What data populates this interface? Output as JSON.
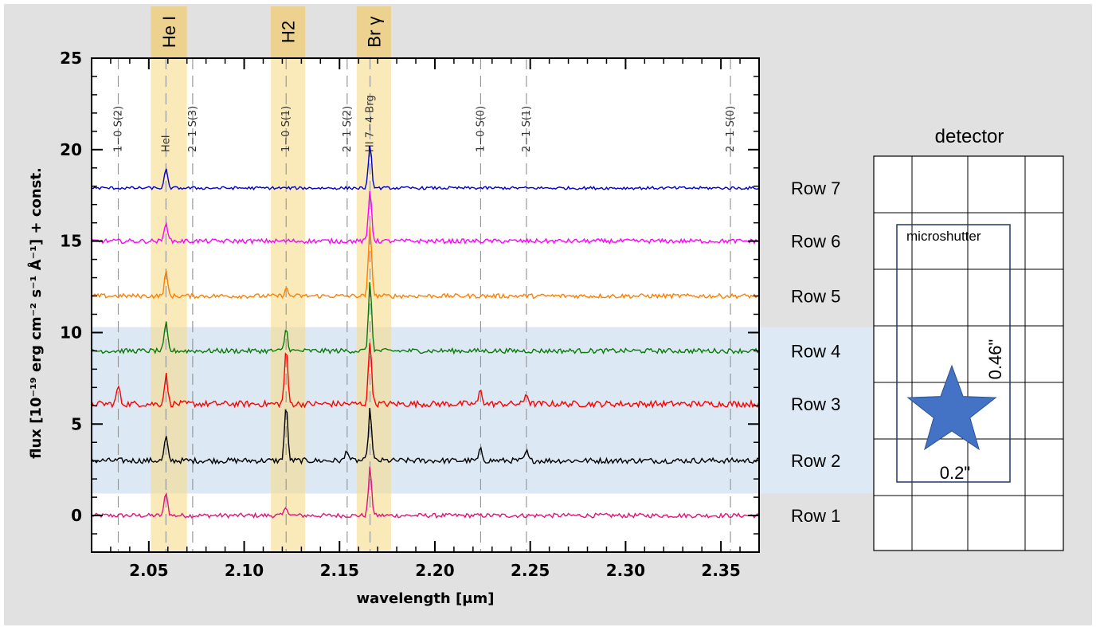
{
  "chart_data": {
    "type": "line",
    "xlabel": "wavelength [μm]",
    "ylabel": "flux [10⁻¹⁹ erg cm⁻² s⁻¹ Å⁻¹] + const.",
    "xlim": [
      2.02,
      2.37
    ],
    "ylim": [
      -2,
      25
    ],
    "x_ticks": [
      2.05,
      2.1,
      2.15,
      2.2,
      2.25,
      2.3,
      2.35
    ],
    "x_tick_labels": [
      "2.05",
      "2.10",
      "2.15",
      "2.20",
      "2.25",
      "2.30",
      "2.35"
    ],
    "y_ticks": [
      0,
      5,
      10,
      15,
      20,
      25
    ],
    "y_tick_labels": [
      "0",
      "5",
      "10",
      "15",
      "20",
      "25"
    ],
    "bands": [
      {
        "label": "He I",
        "x0": 2.051,
        "x1": 2.07
      },
      {
        "label": "H2",
        "x0": 2.114,
        "x1": 2.132
      },
      {
        "label": "Br γ",
        "x0": 2.159,
        "x1": 2.177
      }
    ],
    "lines": [
      {
        "label": "1−0 S(2)",
        "x": 2.034
      },
      {
        "label": "HeI",
        "x": 2.059
      },
      {
        "label": "2−1 S(3)",
        "x": 2.073
      },
      {
        "label": "1−0 S(1)",
        "x": 2.122
      },
      {
        "label": "2−1 S(2)",
        "x": 2.154
      },
      {
        "label": "HI 7−4 Brg",
        "x": 2.166
      },
      {
        "label": "1−0 S(0)",
        "x": 2.224
      },
      {
        "label": "2−1 S(1)",
        "x": 2.248
      },
      {
        "label": "2−1 S(0)",
        "x": 2.355
      }
    ],
    "highlight_region": {
      "y0": 1.2,
      "y1": 10.3
    },
    "series": [
      {
        "label": "Row 1",
        "color": "#e0147a",
        "baseline": 0.0,
        "noise": 0.12,
        "peaks": [
          {
            "x": 2.059,
            "h": 1.3
          },
          {
            "x": 2.122,
            "h": 0.5
          },
          {
            "x": 2.166,
            "h": 2.6
          }
        ]
      },
      {
        "label": "Row 2",
        "color": "#000000",
        "baseline": 3.0,
        "noise": 0.15,
        "peaks": [
          {
            "x": 2.059,
            "h": 1.3
          },
          {
            "x": 2.122,
            "h": 3.0
          },
          {
            "x": 2.154,
            "h": 0.6
          },
          {
            "x": 2.166,
            "h": 2.8
          },
          {
            "x": 2.224,
            "h": 0.6
          },
          {
            "x": 2.248,
            "h": 0.5
          }
        ]
      },
      {
        "label": "Row 3",
        "color": "#ff0000",
        "baseline": 6.1,
        "noise": 0.17,
        "peaks": [
          {
            "x": 2.034,
            "h": 1.0
          },
          {
            "x": 2.059,
            "h": 1.6
          },
          {
            "x": 2.122,
            "h": 3.0
          },
          {
            "x": 2.166,
            "h": 3.4
          },
          {
            "x": 2.224,
            "h": 0.8
          },
          {
            "x": 2.248,
            "h": 0.6
          }
        ]
      },
      {
        "label": "Row 4",
        "color": "#0a7a0a",
        "baseline": 9.0,
        "noise": 0.13,
        "peaks": [
          {
            "x": 2.059,
            "h": 1.5
          },
          {
            "x": 2.122,
            "h": 1.2
          },
          {
            "x": 2.166,
            "h": 3.7
          }
        ]
      },
      {
        "label": "Row 5",
        "color": "#ff7f00",
        "baseline": 12.0,
        "noise": 0.12,
        "peaks": [
          {
            "x": 2.059,
            "h": 1.3
          },
          {
            "x": 2.122,
            "h": 0.4
          },
          {
            "x": 2.166,
            "h": 3.8
          }
        ]
      },
      {
        "label": "Row 6",
        "color": "#ff00ff",
        "baseline": 15.0,
        "noise": 0.12,
        "peaks": [
          {
            "x": 2.059,
            "h": 1.1
          },
          {
            "x": 2.166,
            "h": 2.8
          }
        ]
      },
      {
        "label": "Row 7",
        "color": "#0000cc",
        "baseline": 17.9,
        "noise": 0.08,
        "peaks": [
          {
            "x": 2.059,
            "h": 1.0
          },
          {
            "x": 2.166,
            "h": 2.3
          }
        ]
      }
    ]
  },
  "detector": {
    "title": "detector",
    "microshutter_label": "microshutter",
    "height_label": "0.46\"",
    "width_label": "0.2\"",
    "star_color": "#4472c4",
    "frame_color": "#1f3864"
  }
}
